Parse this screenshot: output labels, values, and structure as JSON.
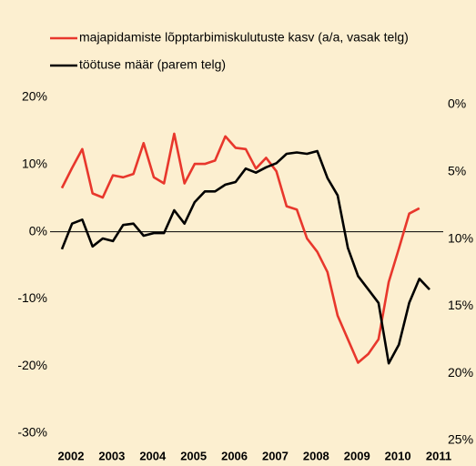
{
  "chart_data": {
    "type": "line",
    "categories": [
      "2002",
      null,
      null,
      null,
      "2003",
      null,
      null,
      null,
      "2004",
      null,
      null,
      null,
      "2005",
      null,
      null,
      null,
      "2006",
      null,
      null,
      null,
      "2007",
      null,
      null,
      null,
      "2008",
      null,
      null,
      null,
      "2009",
      null,
      null,
      null,
      "2010",
      null,
      null,
      null,
      "2011"
    ],
    "series": [
      {
        "name": "majapidamiste lõpptarbimiskulutuste kasv (a/a, vasak telg)",
        "color": "#e8372c",
        "axis": "y",
        "values": [
          6.5,
          9.5,
          12.3,
          5.7,
          5.1,
          8.4,
          8.1,
          8.6,
          13.2,
          8.1,
          7.2,
          14.6,
          7.2,
          10.1,
          10.1,
          10.6,
          14.2,
          12.5,
          12.3,
          9.4,
          11.0,
          9.0,
          3.8,
          3.3,
          -1.0,
          -3.0,
          -6.0,
          -12.5,
          -16.0,
          -19.5,
          -18.2,
          -16.0,
          -7.5,
          -2.5,
          2.7,
          3.5,
          null
        ]
      },
      {
        "name": "töötuse määr (parem telg)",
        "color": "#000000",
        "axis": "y2",
        "values": [
          11.3,
          9.4,
          9.1,
          11.1,
          10.5,
          10.7,
          9.5,
          9.4,
          10.3,
          10.1,
          10.1,
          8.4,
          9.4,
          7.8,
          7.0,
          7.0,
          6.5,
          6.3,
          5.3,
          5.6,
          5.2,
          4.9,
          4.2,
          4.1,
          4.2,
          4.0,
          6.0,
          7.3,
          11.2,
          13.3,
          14.3,
          15.3,
          19.8,
          18.4,
          15.3,
          13.5,
          14.3
        ]
      }
    ],
    "ylim": [
      -30,
      20
    ],
    "yticks": [
      {
        "value": 20,
        "label": "20%"
      },
      {
        "value": 10,
        "label": "10%"
      },
      {
        "value": 0,
        "label": "0%"
      },
      {
        "value": -10,
        "label": "-10%"
      },
      {
        "value": -20,
        "label": "-20%"
      },
      {
        "value": -30,
        "label": "-30%"
      }
    ],
    "y2lim": [
      25,
      0
    ],
    "y2ticks": [
      {
        "value": 0,
        "label": "0%"
      },
      {
        "value": 5,
        "label": "5%"
      },
      {
        "value": 10,
        "label": "10%"
      },
      {
        "value": 15,
        "label": "15%"
      },
      {
        "value": 20,
        "label": "20%"
      },
      {
        "value": 25,
        "label": "25%"
      }
    ],
    "legend": "top-left"
  }
}
